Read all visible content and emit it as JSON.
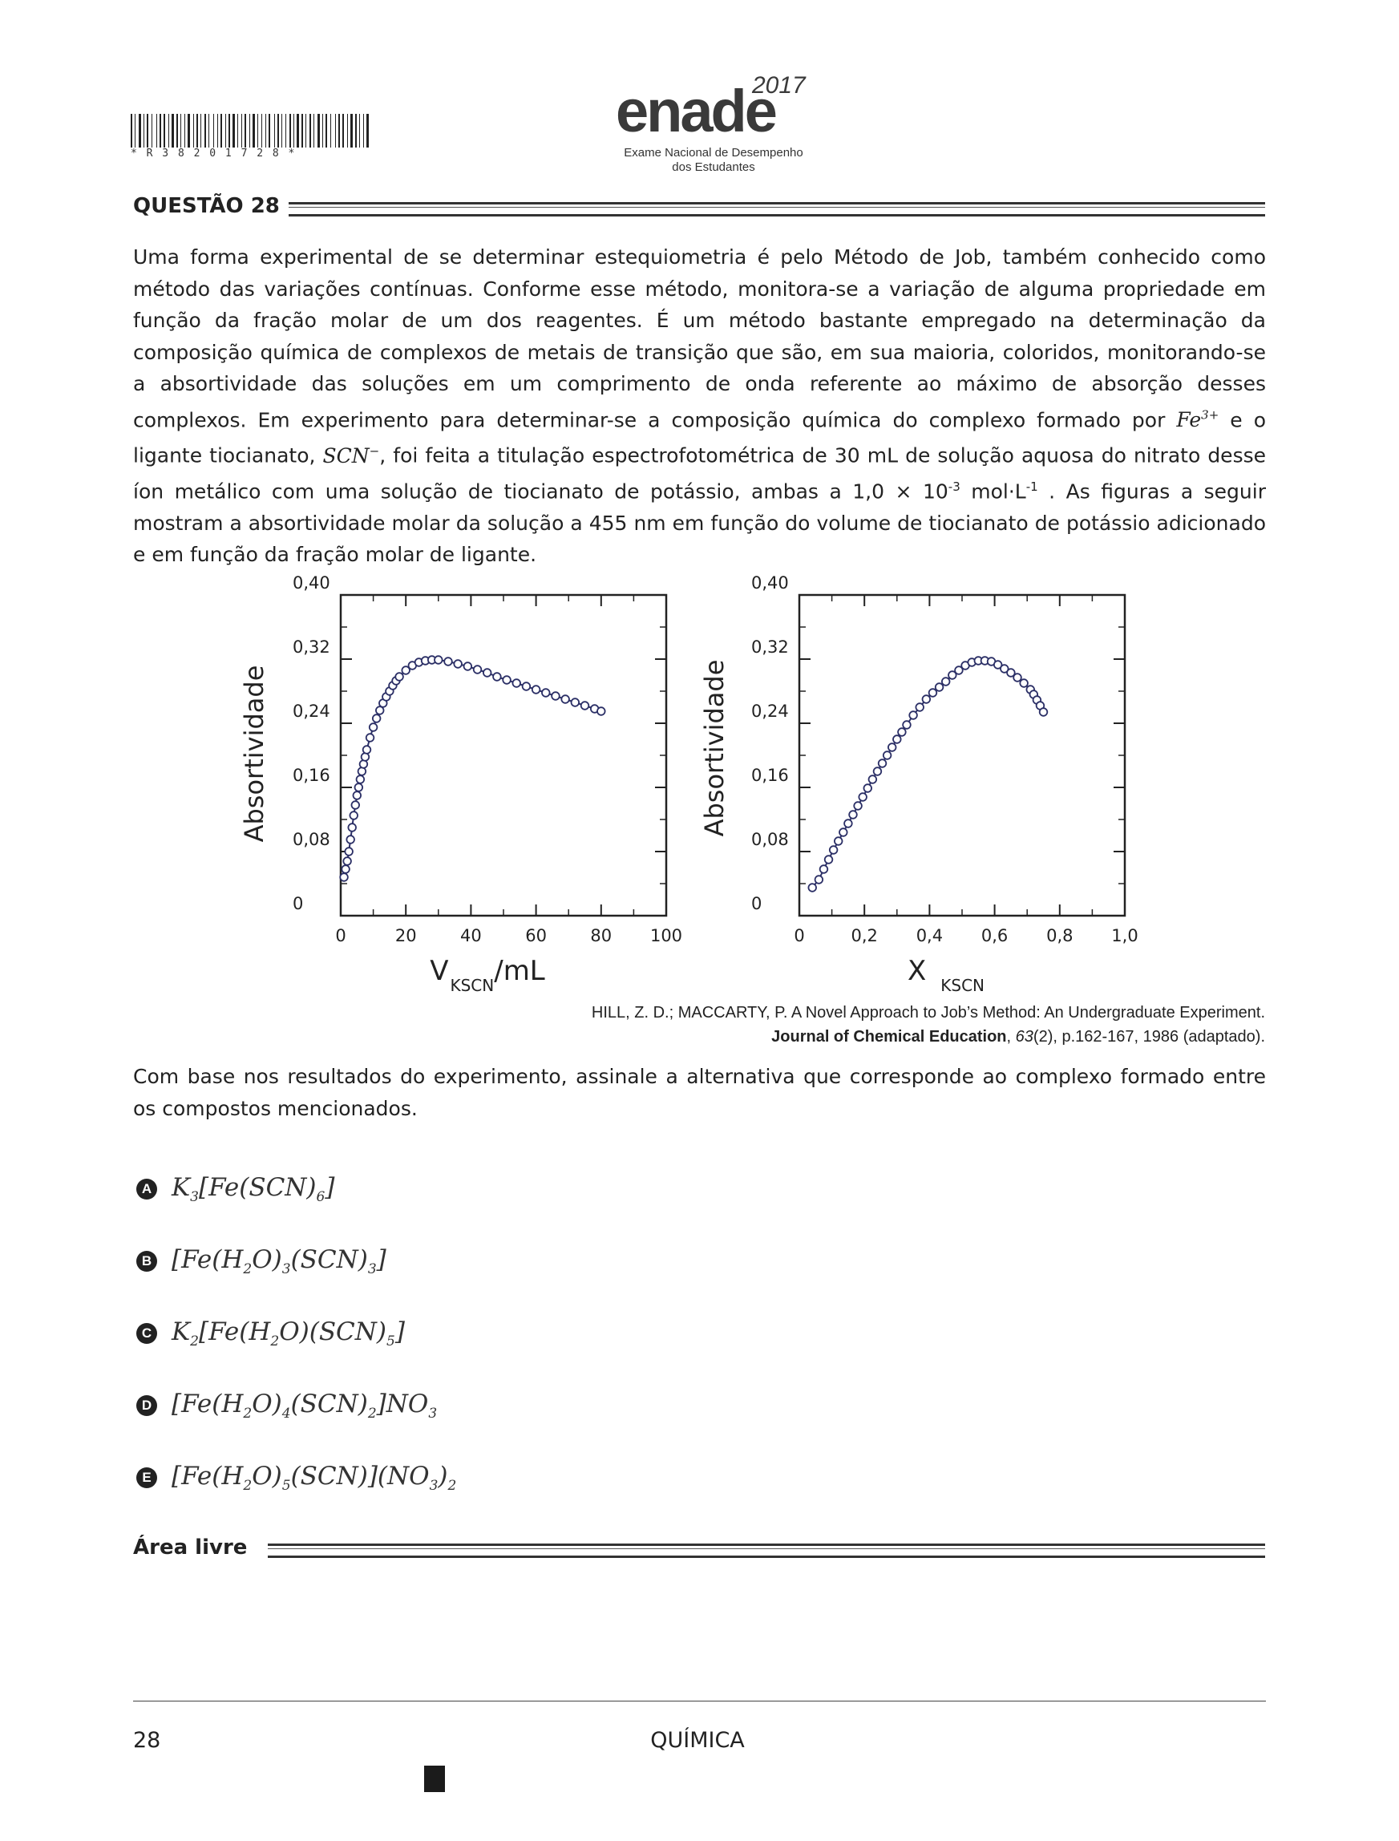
{
  "header": {
    "barcode_text": "* R 3 8 2 0 1 7 2 8 *",
    "logo_word": "enade",
    "logo_year": "2017",
    "logo_subtitle_1": "Exame Nacional de Desempenho",
    "logo_subtitle_2": "dos Estudantes"
  },
  "question": {
    "title": "QUESTÃO 28",
    "para_1a": "Uma forma experimental de se determinar estequiometria é pelo Método de Job, também conhecido como método das variações contínuas. Conforme esse método, monitora-se a variação de alguma propriedade em função da fração molar de um dos reagentes. É um método bastante empregado na determinação da composição química de complexos de metais de transição que são, em sua maioria, coloridos, monitorando-se a absortividade das soluções em um comprimento de onda referente ao máximo de absorção desses complexos. Em experimento para determinar-se a composição química do complexo formado por ",
    "fe_ion": "Fe",
    "fe_charge": "3+",
    "para_1b": " e o ligante tiocianato, ",
    "scn_ion": "SCN",
    "scn_charge": "−",
    "para_1c": ", foi feita a titulação espectrofotométrica de 30 mL de solução aquosa do nitrato desse íon metálico com uma solução de tiocianato de potássio, ambas a 1,0 × 10",
    "exp_1": "-3",
    "para_1d": " mol·L",
    "exp_2": "-1",
    "para_1e": " . As figuras a seguir mostram a absortividade molar da solução a 455 nm em função do volume de tiocianato de potássio adicionado e em função da fração molar de ligante.",
    "citation_line1": "HILL, Z. D.; MACCARTY, P. A Novel Approach to Job’s Method: An Undergraduate Experiment.",
    "citation_journal": "Journal of Chemical Education",
    "citation_sep": ", ",
    "citation_volume": "63",
    "citation_rest": "(2), p.162-167, 1986 (adaptado).",
    "prompt": "Com base nos resultados do experimento, assinale a alternativa que corresponde ao complexo formado entre os compostos mencionados."
  },
  "options": [
    {
      "letter": "A",
      "parts": [
        [
          "",
          "K"
        ],
        [
          "sub",
          "3"
        ],
        [
          "",
          "[Fe(SCN)"
        ],
        [
          "sub",
          "6"
        ],
        [
          "",
          "]"
        ]
      ]
    },
    {
      "letter": "B",
      "parts": [
        [
          "",
          "[Fe(H"
        ],
        [
          "sub",
          "2"
        ],
        [
          "",
          "O)"
        ],
        [
          "sub",
          "3"
        ],
        [
          "",
          "(SCN)"
        ],
        [
          "sub",
          "3"
        ],
        [
          "",
          "]"
        ]
      ]
    },
    {
      "letter": "C",
      "parts": [
        [
          "",
          "K"
        ],
        [
          "sub",
          "2"
        ],
        [
          "",
          "[Fe(H"
        ],
        [
          "sub",
          "2"
        ],
        [
          "",
          "O)(SCN)"
        ],
        [
          "sub",
          "5"
        ],
        [
          "",
          "]"
        ]
      ]
    },
    {
      "letter": "D",
      "parts": [
        [
          "",
          "[Fe(H"
        ],
        [
          "sub",
          "2"
        ],
        [
          "",
          "O)"
        ],
        [
          "sub",
          "4"
        ],
        [
          "",
          "(SCN)"
        ],
        [
          "sub",
          "2"
        ],
        [
          "",
          "]NO"
        ],
        [
          "sub",
          "3"
        ]
      ]
    },
    {
      "letter": "E",
      "parts": [
        [
          "",
          "[Fe(H"
        ],
        [
          "sub",
          "2"
        ],
        [
          "",
          "O)"
        ],
        [
          "sub",
          "5"
        ],
        [
          "",
          "(SCN)](NO"
        ],
        [
          "sub",
          "3"
        ],
        [
          "",
          ")"
        ],
        [
          "sub",
          "2"
        ]
      ]
    }
  ],
  "free_area": {
    "title": "Área livre"
  },
  "footer": {
    "page_number": "28",
    "subject": "QUÍMICA"
  },
  "chart_data": [
    {
      "type": "scatter",
      "xlabel": "V",
      "xlabel_sub": "KSCN",
      "xlabel_suffix": "/mL",
      "ylabel": "Absortividade",
      "xlim": [
        0,
        100
      ],
      "ylim": [
        0,
        0.4
      ],
      "x_ticks": [
        "0",
        "20",
        "40",
        "60",
        "80",
        "100"
      ],
      "y_ticks": [
        "0",
        "0,08",
        "0,16",
        "0,24",
        "0,32",
        "0,40"
      ],
      "x": [
        1,
        1.5,
        2,
        2.5,
        3,
        3.5,
        4,
        4.5,
        5,
        5.5,
        6,
        6.5,
        7,
        7.5,
        8,
        9,
        10,
        11,
        12,
        13,
        14,
        15,
        16,
        17,
        18,
        20,
        22,
        24,
        26,
        28,
        30,
        33,
        36,
        39,
        42,
        45,
        48,
        51,
        54,
        57,
        60,
        63,
        66,
        69,
        72,
        75,
        78,
        80
      ],
      "y": [
        0.048,
        0.058,
        0.068,
        0.08,
        0.095,
        0.11,
        0.125,
        0.138,
        0.15,
        0.16,
        0.17,
        0.18,
        0.189,
        0.198,
        0.207,
        0.222,
        0.235,
        0.246,
        0.256,
        0.265,
        0.273,
        0.28,
        0.287,
        0.293,
        0.298,
        0.306,
        0.312,
        0.316,
        0.318,
        0.319,
        0.319,
        0.317,
        0.314,
        0.311,
        0.307,
        0.303,
        0.298,
        0.294,
        0.29,
        0.286,
        0.282,
        0.278,
        0.274,
        0.27,
        0.266,
        0.262,
        0.258,
        0.255
      ],
      "grid": false
    },
    {
      "type": "scatter",
      "xlabel": "X",
      "xlabel_sub": "KSCN",
      "xlabel_suffix": "",
      "ylabel": "Absortividade",
      "xlim": [
        0,
        1.0
      ],
      "ylim": [
        0,
        0.4
      ],
      "x_ticks": [
        "0",
        "0,2",
        "0,4",
        "0,6",
        "0,8",
        "1,0"
      ],
      "y_ticks": [
        "0",
        "0,08",
        "0,16",
        "0,24",
        "0,32",
        "0,40"
      ],
      "x": [
        0.04,
        0.06,
        0.075,
        0.09,
        0.105,
        0.12,
        0.135,
        0.15,
        0.165,
        0.18,
        0.195,
        0.21,
        0.225,
        0.24,
        0.255,
        0.27,
        0.285,
        0.3,
        0.315,
        0.33,
        0.35,
        0.37,
        0.39,
        0.41,
        0.43,
        0.45,
        0.47,
        0.49,
        0.51,
        0.53,
        0.55,
        0.57,
        0.59,
        0.61,
        0.63,
        0.65,
        0.67,
        0.69,
        0.71,
        0.72,
        0.73,
        0.74,
        0.75
      ],
      "y": [
        0.035,
        0.045,
        0.058,
        0.07,
        0.082,
        0.093,
        0.104,
        0.115,
        0.126,
        0.137,
        0.148,
        0.159,
        0.17,
        0.18,
        0.19,
        0.2,
        0.21,
        0.22,
        0.229,
        0.238,
        0.25,
        0.26,
        0.27,
        0.278,
        0.285,
        0.292,
        0.3,
        0.306,
        0.312,
        0.316,
        0.318,
        0.318,
        0.317,
        0.313,
        0.308,
        0.303,
        0.297,
        0.29,
        0.282,
        0.276,
        0.269,
        0.262,
        0.254
      ],
      "grid": false
    }
  ]
}
